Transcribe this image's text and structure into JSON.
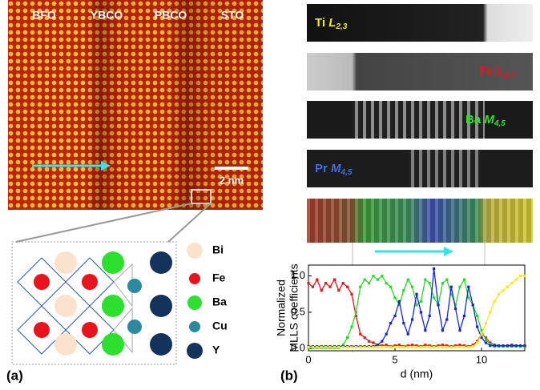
{
  "panel_a": {
    "label": "(a)",
    "layers": [
      "BFO",
      "YBCO",
      "PBCO",
      "STO"
    ],
    "scale_bar": "2 nm",
    "legend": [
      "Bi",
      "Fe",
      "Ba",
      "Cu",
      "Y"
    ]
  },
  "panel_b": {
    "label": "(b)",
    "maps": [
      {
        "element": "Ti",
        "edge": "L",
        "sub": "2,3"
      },
      {
        "element": "Fe",
        "edge": "L",
        "sub": "2,3"
      },
      {
        "element": "Ba",
        "edge": "M",
        "sub": "4,5"
      },
      {
        "element": "Pr",
        "edge": "M",
        "sub": "4,5"
      }
    ]
  },
  "chart_data": {
    "type": "line",
    "y_label": [
      "Normalized",
      "MLLS coefficients"
    ],
    "x_label": "d (nm)",
    "xlim": [
      0,
      12.5
    ],
    "ylim": [
      -0.03,
      1.15
    ],
    "xticks": [
      0,
      5,
      10
    ],
    "yticks": [
      {
        "value": 0,
        "label": "0.0"
      },
      {
        "value": 0.5,
        "label": "0.5"
      },
      {
        "value": 1,
        "label": "1.0"
      }
    ],
    "x": [
      0,
      0.25,
      0.5,
      0.75,
      1,
      1.25,
      1.5,
      1.75,
      2,
      2.25,
      2.5,
      2.75,
      3,
      3.25,
      3.5,
      3.75,
      4,
      4.25,
      4.5,
      4.75,
      5,
      5.25,
      5.5,
      5.75,
      6,
      6.25,
      6.5,
      6.75,
      7,
      7.25,
      7.5,
      7.75,
      8,
      8.25,
      8.5,
      8.75,
      9,
      9.25,
      9.5,
      9.75,
      10,
      10.25,
      10.5,
      10.75,
      11,
      11.25,
      11.5,
      11.75,
      12,
      12.25,
      12.5
    ],
    "series": [
      {
        "color": "#e8141c",
        "values": [
          0.9,
          0.85,
          0.95,
          0.8,
          0.9,
          0.85,
          0.95,
          0.8,
          0.9,
          0.85,
          0.75,
          0.45,
          0.2,
          0.15,
          0.1,
          0.08,
          0.05,
          0.04,
          0.05,
          0.03,
          0.04,
          0.05,
          0.03,
          0.04,
          0.05,
          0.04,
          0.03,
          0.05,
          0.04,
          0.03,
          0.04,
          0.05,
          0.04,
          0.03,
          0.04,
          0.05,
          0.04,
          0.03,
          0.05,
          0.1,
          0.2,
          0.15,
          0.08,
          0.05,
          0.04,
          0.03,
          0.04,
          0.05,
          0.04,
          0.03,
          0.04
        ]
      },
      {
        "color": "#2bd82b",
        "values": [
          0.01,
          0.01,
          0.01,
          0.01,
          0.01,
          0.01,
          0.01,
          0.01,
          0.05,
          0.15,
          0.3,
          0.5,
          0.85,
          0.95,
          0.9,
          1.0,
          0.95,
          1.0,
          0.9,
          0.85,
          0.7,
          0.6,
          0.8,
          0.95,
          0.85,
          0.6,
          0.65,
          0.95,
          0.9,
          0.7,
          0.6,
          0.9,
          0.95,
          0.75,
          0.6,
          0.85,
          0.95,
          0.7,
          0.6,
          0.45,
          0.25,
          0.12,
          0.06,
          0.03,
          0.03,
          0.03,
          0.03,
          0.03,
          0.03,
          0.03,
          0.03
        ]
      },
      {
        "color": "#1428d0",
        "values": [
          0.03,
          0.03,
          0.03,
          0.03,
          0.03,
          0.03,
          0.03,
          0.03,
          0.03,
          0.03,
          0.03,
          0.03,
          0.03,
          0.03,
          0.03,
          0.03,
          0.05,
          0.1,
          0.2,
          0.35,
          0.45,
          0.65,
          0.35,
          0.2,
          0.4,
          0.75,
          0.5,
          0.25,
          0.45,
          1.1,
          0.6,
          0.25,
          0.4,
          0.85,
          0.55,
          0.25,
          0.45,
          0.85,
          0.6,
          0.3,
          0.15,
          0.08,
          0.04,
          0.04,
          0.04,
          0.04,
          0.04,
          0.04,
          0.04,
          0.04,
          0.04
        ]
      },
      {
        "color": "#f2e81a",
        "values": [
          0.02,
          0.02,
          0.02,
          0.02,
          0.02,
          0.02,
          0.02,
          0.02,
          0.02,
          0.02,
          0.02,
          0.02,
          0.02,
          0.02,
          0.02,
          0.02,
          0.02,
          0.02,
          0.02,
          0.02,
          0.02,
          0.02,
          0.02,
          0.02,
          0.02,
          0.02,
          0.02,
          0.02,
          0.02,
          0.02,
          0.02,
          0.02,
          0.02,
          0.02,
          0.02,
          0.02,
          0.02,
          0.02,
          0.03,
          0.08,
          0.2,
          0.35,
          0.5,
          0.65,
          0.75,
          0.8,
          0.85,
          0.9,
          0.95,
          1.0,
          1.0
        ]
      }
    ]
  }
}
